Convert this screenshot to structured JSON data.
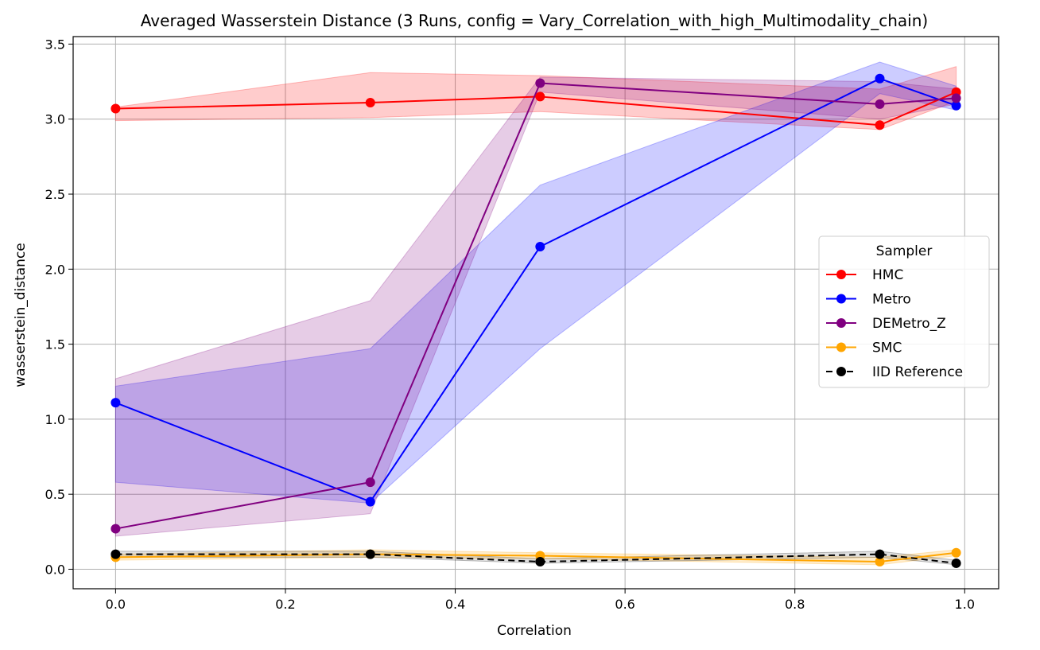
{
  "chart_data": {
    "type": "line",
    "title": "Averaged Wasserstein Distance (3 Runs, config = Vary_Correlation_with_high_Multimodality_chain)",
    "xlabel": "Correlation",
    "ylabel": "wasserstein_distance",
    "xlim": [
      -0.05,
      1.04
    ],
    "ylim": [
      -0.13,
      3.55
    ],
    "xticks": [
      0.0,
      0.2,
      0.4,
      0.6,
      0.8,
      1.0
    ],
    "xtick_labels": [
      "0.0",
      "0.2",
      "0.4",
      "0.6",
      "0.8",
      "1.0"
    ],
    "yticks": [
      0.0,
      0.5,
      1.0,
      1.5,
      2.0,
      2.5,
      3.0,
      3.5
    ],
    "ytick_labels": [
      "0.0",
      "0.5",
      "1.0",
      "1.5",
      "2.0",
      "2.5",
      "3.0",
      "3.5"
    ],
    "grid": true,
    "legend_title": "Sampler",
    "legend_position": "center-right",
    "x": [
      0.0,
      0.3,
      0.5,
      0.9,
      0.99
    ],
    "series": [
      {
        "name": "HMC",
        "color": "#ff0000",
        "dashed": false,
        "values": [
          3.07,
          3.11,
          3.15,
          2.96,
          3.18
        ],
        "band_upper": [
          3.08,
          3.31,
          3.29,
          3.2,
          3.35
        ],
        "band_lower": [
          2.99,
          3.01,
          3.05,
          2.93,
          3.12
        ]
      },
      {
        "name": "Metro",
        "color": "#0000ff",
        "dashed": false,
        "values": [
          1.11,
          0.45,
          2.15,
          3.27,
          3.09
        ],
        "band_upper": [
          1.22,
          1.47,
          2.56,
          3.38,
          3.22
        ],
        "band_lower": [
          0.58,
          0.44,
          1.47,
          3.17,
          3.06
        ]
      },
      {
        "name": "DEMetro_Z",
        "color": "#800080",
        "dashed": false,
        "values": [
          0.27,
          0.58,
          3.24,
          3.1,
          3.14
        ],
        "band_upper": [
          1.27,
          1.79,
          3.28,
          3.25,
          3.2
        ],
        "band_lower": [
          0.22,
          0.37,
          3.18,
          3.0,
          3.1
        ]
      },
      {
        "name": "SMC",
        "color": "#ffa500",
        "dashed": false,
        "values": [
          0.08,
          0.1,
          0.09,
          0.05,
          0.11
        ],
        "band_upper": [
          0.1,
          0.13,
          0.11,
          0.08,
          0.13
        ],
        "band_lower": [
          0.06,
          0.08,
          0.07,
          0.03,
          0.09
        ]
      },
      {
        "name": "IID Reference",
        "color": "#000000",
        "dashed": true,
        "values": [
          0.1,
          0.1,
          0.05,
          0.1,
          0.04
        ],
        "band_upper": [
          0.12,
          0.12,
          0.07,
          0.12,
          0.06
        ],
        "band_lower": [
          0.08,
          0.08,
          0.04,
          0.08,
          0.03
        ]
      }
    ]
  }
}
